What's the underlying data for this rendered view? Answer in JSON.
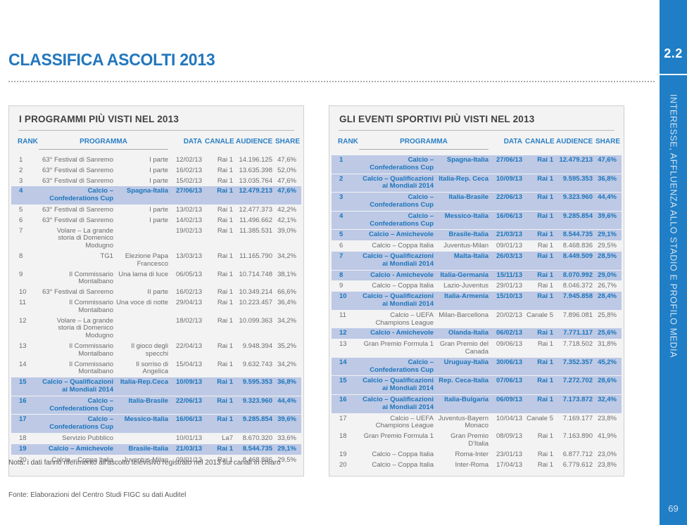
{
  "page": {
    "title": "CLASSIFICA ASCOLTI 2013",
    "note": "Nota: i dati fanno riferimento all'ascolto televisivo registrato nel 2013 sui canali in chiaro",
    "source": "Fonte: Elaborazioni del Centro Studi FIGC su dati Auditel"
  },
  "sidebar": {
    "section_number": "2.2",
    "chapter_title": "INTERESSE, AFFLUENZA ALLO STADIO E PROFILO MEDIA",
    "page_number": "69"
  },
  "colors": {
    "brand_blue": "#1c75bc",
    "band_blue": "#1f7ec6",
    "header_blue": "#2b7fc3",
    "highlight_row_bg": "#bdc9e5",
    "row_text_gray": "#6b6c6e",
    "table_bg": "#f3f3f4"
  },
  "tables": [
    {
      "title": "I PROGRAMMI PIÙ VISTI NEL 2013",
      "headers": {
        "rank": "RANK",
        "programma": "PROGRAMMA",
        "data": "DATA",
        "canale": "CANALE",
        "audience": "AUDIENCE",
        "share": "SHARE"
      },
      "rows": [
        {
          "rank": "1",
          "programma": "63° Festival di Sanremo",
          "detail": "I parte",
          "data": "12/02/13",
          "canale": "Rai 1",
          "audience": "14.196.125",
          "share": "47,6%",
          "highlight": false
        },
        {
          "rank": "2",
          "programma": "63° Festival di Sanremo",
          "detail": "I parte",
          "data": "16/02/13",
          "canale": "Rai 1",
          "audience": "13.635.398",
          "share": "52,0%",
          "highlight": false
        },
        {
          "rank": "3",
          "programma": "63° Festival di Sanremo",
          "detail": "I parte",
          "data": "15/02/13",
          "canale": "Rai 1",
          "audience": "13.035.764",
          "share": "47,6%",
          "highlight": false
        },
        {
          "rank": "4",
          "programma": "Calcio – Confederations Cup",
          "detail": "Spagna-Italia",
          "data": "27/06/13",
          "canale": "Rai 1",
          "audience": "12.479.213",
          "share": "47,6%",
          "highlight": true
        },
        {
          "rank": "5",
          "programma": "63° Festival di Sanremo",
          "detail": "I parte",
          "data": "13/02/13",
          "canale": "Rai 1",
          "audience": "12.477.373",
          "share": "42,2%",
          "highlight": false
        },
        {
          "rank": "6",
          "programma": "63° Festival di Sanremo",
          "detail": "I parte",
          "data": "14/02/13",
          "canale": "Rai 1",
          "audience": "11.496.662",
          "share": "42,1%",
          "highlight": false
        },
        {
          "rank": "7",
          "programma": "Volare – La grande storia di Domenico Modugno",
          "detail": "",
          "data": "19/02/13",
          "canale": "Rai 1",
          "audience": "11.385.531",
          "share": "39,0%",
          "highlight": false
        },
        {
          "rank": "8",
          "programma": "TG1",
          "detail": "Elezione Papa Francesco",
          "data": "13/03/13",
          "canale": "Rai 1",
          "audience": "11.165.790",
          "share": "34,2%",
          "highlight": false
        },
        {
          "rank": "9",
          "programma": "Il Commissario Montalbano",
          "detail": "Una lama di luce",
          "data": "06/05/13",
          "canale": "Rai 1",
          "audience": "10.714.748",
          "share": "38,1%",
          "highlight": false
        },
        {
          "rank": "10",
          "programma": "63° Festival di Sanremo",
          "detail": "II parte",
          "data": "16/02/13",
          "canale": "Rai 1",
          "audience": "10.349.214",
          "share": "66,6%",
          "highlight": false
        },
        {
          "rank": "11",
          "programma": "Il Commissario Montalbano",
          "detail": "Una voce di notte",
          "data": "29/04/13",
          "canale": "Rai 1",
          "audience": "10.223.457",
          "share": "36,4%",
          "highlight": false
        },
        {
          "rank": "12",
          "programma": "Volare – La grande storia di Domenico Modugno",
          "detail": "",
          "data": "18/02/13",
          "canale": "Rai 1",
          "audience": "10.099.363",
          "share": "34,2%",
          "highlight": false
        },
        {
          "rank": "13",
          "programma": "Il Commissario Montalbano",
          "detail": "Il gioco degli specchi",
          "data": "22/04/13",
          "canale": "Rai 1",
          "audience": "9.948.394",
          "share": "35,2%",
          "highlight": false
        },
        {
          "rank": "14",
          "programma": "Il Commissario Montalbano",
          "detail": "Il sorriso di Angelica",
          "data": "15/04/13",
          "canale": "Rai 1",
          "audience": "9.632.743",
          "share": "34,2%",
          "highlight": false
        },
        {
          "rank": "15",
          "programma": "Calcio – Qualificazioni ai Mondiali 2014",
          "detail": "Italia-Rep.Ceca",
          "data": "10/09/13",
          "canale": "Rai 1",
          "audience": "9.595.353",
          "share": "36,8%",
          "highlight": true
        },
        {
          "rank": "16",
          "programma": "Calcio – Confederations Cup",
          "detail": "Italia-Brasile",
          "data": "22/06/13",
          "canale": "Rai 1",
          "audience": "9.323.960",
          "share": "44,4%",
          "highlight": true
        },
        {
          "rank": "17",
          "programma": "Calcio – Confederations Cup",
          "detail": "Messico-Italia",
          "data": "16/06/13",
          "canale": "Rai 1",
          "audience": "9.285.854",
          "share": "39,6%",
          "highlight": true
        },
        {
          "rank": "18",
          "programma": "Servizio Pubblico",
          "detail": "",
          "data": "10/01/13",
          "canale": "La7",
          "audience": "8.670.320",
          "share": "33,6%",
          "highlight": false
        },
        {
          "rank": "19",
          "programma": "Calcio – Amichevole",
          "detail": "Brasile-Italia",
          "data": "21/03/13",
          "canale": "Rai 1",
          "audience": "8.544.735",
          "share": "29,1%",
          "highlight": true
        },
        {
          "rank": "20",
          "programma": "Calcio – Coppa Italia",
          "detail": "Juventus-Milan",
          "data": "09/01/13",
          "canale": "Rai 1",
          "audience": "8.468.836",
          "share": "29,5%",
          "highlight": false
        }
      ]
    },
    {
      "title": "GLI EVENTI SPORTIVI PIÙ VISTI NEL 2013",
      "headers": {
        "rank": "RANK",
        "programma": "PROGRAMMA",
        "data": "DATA",
        "canale": "CANALE",
        "audience": "AUDIENCE",
        "share": "SHARE"
      },
      "rows": [
        {
          "rank": "1",
          "programma": "Calcio – Confederations Cup",
          "detail": "Spagna-Italia",
          "data": "27/06/13",
          "canale": "Rai 1",
          "audience": "12.479.213",
          "share": "47,6%",
          "highlight": true
        },
        {
          "rank": "2",
          "programma": "Calcio – Qualificazioni ai Mondiali 2014",
          "detail": "Italia-Rep. Ceca",
          "data": "10/09/13",
          "canale": "Rai 1",
          "audience": "9.595.353",
          "share": "36,8%",
          "highlight": true
        },
        {
          "rank": "3",
          "programma": "Calcio – Confederations Cup",
          "detail": "Italia-Brasile",
          "data": "22/06/13",
          "canale": "Rai 1",
          "audience": "9.323.960",
          "share": "44,4%",
          "highlight": true
        },
        {
          "rank": "4",
          "programma": "Calcio – Confederations Cup",
          "detail": "Messico-Italia",
          "data": "16/06/13",
          "canale": "Rai 1",
          "audience": "9.285.854",
          "share": "39,6%",
          "highlight": true
        },
        {
          "rank": "5",
          "programma": "Calcio – Amichevole",
          "detail": "Brasile-Italia",
          "data": "21/03/13",
          "canale": "Rai 1",
          "audience": "8.544.735",
          "share": "29,1%",
          "highlight": true
        },
        {
          "rank": "6",
          "programma": "Calcio – Coppa Italia",
          "detail": "Juventus-Milan",
          "data": "09/01/13",
          "canale": "Rai 1",
          "audience": "8.468.836",
          "share": "29,5%",
          "highlight": false
        },
        {
          "rank": "7",
          "programma": "Calcio – Qualificazioni ai Mondiali 2014",
          "detail": "Malta-Italia",
          "data": "26/03/13",
          "canale": "Rai 1",
          "audience": "8.449.509",
          "share": "28,5%",
          "highlight": true
        },
        {
          "rank": "8",
          "programma": "Calcio - Amichevole",
          "detail": "Italia-Germania",
          "data": "15/11/13",
          "canale": "Rai 1",
          "audience": "8.070.992",
          "share": "29,0%",
          "highlight": true
        },
        {
          "rank": "9",
          "programma": "Calcio – Coppa Italia",
          "detail": "Lazio-Juventus",
          "data": "29/01/13",
          "canale": "Rai 1",
          "audience": "8.046.372",
          "share": "26,7%",
          "highlight": false
        },
        {
          "rank": "10",
          "programma": "Calcio – Qualificazioni ai Mondiali 2014",
          "detail": "Italia-Armenia",
          "data": "15/10/13",
          "canale": "Rai 1",
          "audience": "7.945.858",
          "share": "28,4%",
          "highlight": true
        },
        {
          "rank": "11",
          "programma": "Calcio – UEFA Champions League",
          "detail": "Milan-Barcellona",
          "data": "20/02/13",
          "canale": "Canale 5",
          "audience": "7.896.081",
          "share": "25,8%",
          "highlight": false
        },
        {
          "rank": "12",
          "programma": "Calcio - Amichevole",
          "detail": "Olanda-Italia",
          "data": "06/02/13",
          "canale": "Rai 1",
          "audience": "7.771.117",
          "share": "25,6%",
          "highlight": true
        },
        {
          "rank": "13",
          "programma": "Gran Premio Formula 1",
          "detail": "Gran Premio del Canada",
          "data": "09/06/13",
          "canale": "Rai 1",
          "audience": "7.718.502",
          "share": "31,8%",
          "highlight": false
        },
        {
          "rank": "14",
          "programma": "Calcio – Confederations Cup",
          "detail": "Uruguay-Italia",
          "data": "30/06/13",
          "canale": "Rai 1",
          "audience": "7.352.357",
          "share": "45,2%",
          "highlight": true
        },
        {
          "rank": "15",
          "programma": "Calcio – Qualificazioni ai Mondiali 2014",
          "detail": "Rep. Ceca-Italia",
          "data": "07/06/13",
          "canale": "Rai 1",
          "audience": "7.272.702",
          "share": "28,6%",
          "highlight": true
        },
        {
          "rank": "16",
          "programma": "Calcio – Qualificazioni ai Mondiali 2014",
          "detail": "Italia-Bulgaria",
          "data": "06/09/13",
          "canale": "Rai 1",
          "audience": "7.173.872",
          "share": "32,4%",
          "highlight": true
        },
        {
          "rank": "17",
          "programma": "Calcio – UEFA Champions League",
          "detail": "Juventus-Bayern Monaco",
          "data": "10/04/13",
          "canale": "Canale 5",
          "audience": "7.169.177",
          "share": "23,8%",
          "highlight": false
        },
        {
          "rank": "18",
          "programma": "Gran Premio Formula 1",
          "detail": "Gran Premio D'Italia",
          "data": "08/09/13",
          "canale": "Rai 1",
          "audience": "7.163.890",
          "share": "41,9%",
          "highlight": false
        },
        {
          "rank": "19",
          "programma": "Calcio – Coppa Italia",
          "detail": "Roma-Inter",
          "data": "23/01/13",
          "canale": "Rai 1",
          "audience": "6.877.712",
          "share": "23,0%",
          "highlight": false
        },
        {
          "rank": "20",
          "programma": "Calcio – Coppa Italia",
          "detail": "Inter-Roma",
          "data": "17/04/13",
          "canale": "Rai 1",
          "audience": "6.779.612",
          "share": "23,8%",
          "highlight": false
        }
      ]
    }
  ]
}
